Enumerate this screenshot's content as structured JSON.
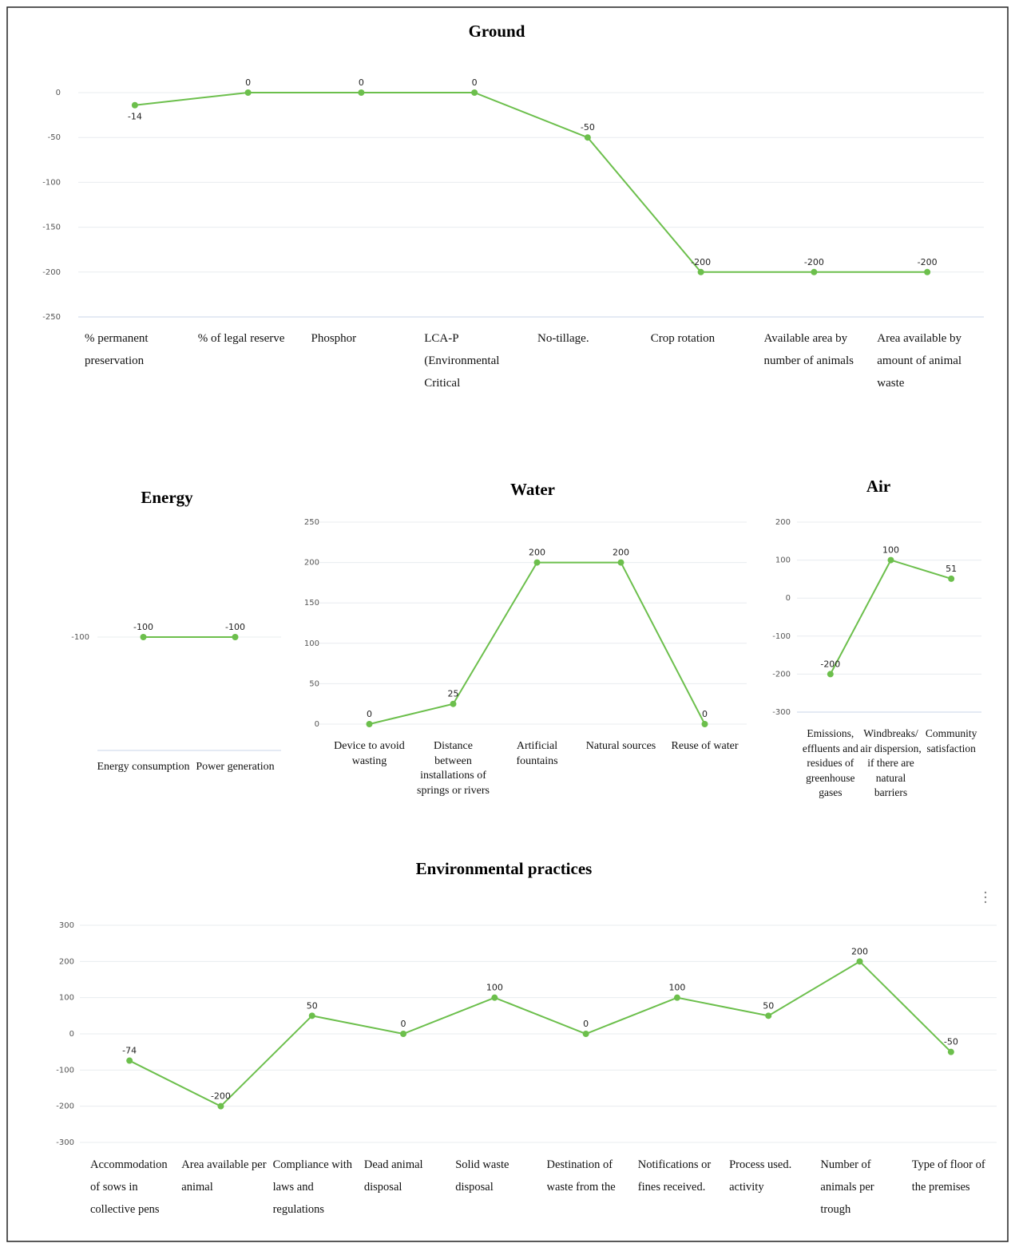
{
  "chart_data": [
    {
      "type": "line",
      "title": "Ground",
      "categories": [
        "% permanent preservation",
        "% of legal reserve",
        "Phosphor",
        "LCA-P (Environmental Critical",
        "No-tillage.",
        "Crop rotation",
        "Available area by number of animals",
        "Area available by amount of animal waste"
      ],
      "values": [
        -14,
        0,
        0,
        0,
        -50,
        -200,
        -200,
        -200
      ],
      "color": "#6cbf4c",
      "ylim": [
        -250,
        0
      ],
      "yticks": [
        0,
        -50,
        -100,
        -150,
        -200,
        -250
      ],
      "grid": true
    },
    {
      "type": "line",
      "title": "Energy",
      "categories": [
        "Energy consumption",
        "Power generation"
      ],
      "values": [
        -100,
        -100
      ],
      "color": "#6cbf4c",
      "ylim": [
        -200,
        0
      ],
      "yticks": [
        -100
      ],
      "grid": true
    },
    {
      "type": "line",
      "title": "Water",
      "categories": [
        "Device to avoid wasting",
        "Distance between installations of springs or rivers",
        "Artificial fountains",
        "Natural sources",
        "Reuse of water"
      ],
      "values": [
        0,
        25,
        200,
        200,
        0
      ],
      "color": "#6cbf4c",
      "ylim": [
        0,
        250
      ],
      "yticks": [
        0,
        50,
        100,
        150,
        200,
        250
      ],
      "grid": true
    },
    {
      "type": "line",
      "title": "Air",
      "categories": [
        "Emissions, effluents and residues of greenhouse gases",
        "Windbreaks/ air dispersion, if there are natural barriers",
        "Community satisfaction"
      ],
      "values": [
        -200,
        100,
        51
      ],
      "color": "#6cbf4c",
      "ylim": [
        -300,
        200
      ],
      "yticks": [
        200,
        100,
        0,
        -100,
        -200,
        -300
      ],
      "grid": true
    },
    {
      "type": "line",
      "title": "Environmental practices",
      "categories": [
        "Accommodation of sows in collective pens",
        "Area available per animal",
        "Compliance with laws and regulations",
        "Dead animal disposal",
        "Solid waste disposal",
        "Destination of waste from the",
        "Notifications or fines received.",
        "Process used. activity",
        "Number of animals per trough",
        "Type of floor of the premises"
      ],
      "values": [
        -74,
        -200,
        50,
        0,
        100,
        0,
        100,
        50,
        200,
        -50
      ],
      "color": "#6cbf4c",
      "ylim": [
        -300,
        300
      ],
      "yticks": [
        300,
        200,
        100,
        0,
        -100,
        -200,
        -300
      ],
      "grid": true
    }
  ]
}
